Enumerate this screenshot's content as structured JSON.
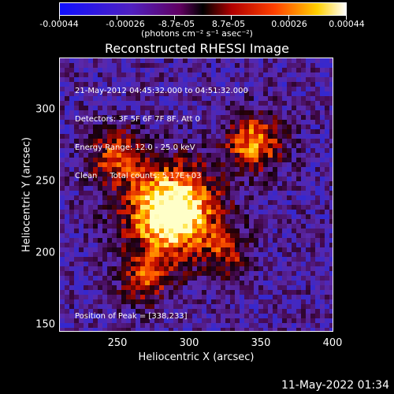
{
  "colorbar": {
    "labels": [
      "-0.00044",
      "-0.00026",
      "-8.7e-05",
      "8.7e-05",
      "0.00026",
      "0.00044"
    ],
    "units": "(photons cm⁻² s⁻¹ asec⁻²)",
    "colors": [
      "#0000ff",
      "#6000b0",
      "#800060",
      "#c00000",
      "#ff6000",
      "#ffff00",
      "#ffffff"
    ]
  },
  "title": "Reconstructed RHESSI Image",
  "info": {
    "line1": "21-May-2012 04:45:32.000 to 04:51:32.000",
    "line2": "Detectors: 3F 5F 6F 7F 8F, Att 0",
    "line3": "Energy Range: 12.0 - 25.0 keV",
    "line4": "Clean     Total counts: 5.17E+03"
  },
  "peak": "Position of Peak = [338,233]",
  "axes": {
    "xlabel": "Heliocentric X (arcsec)",
    "ylabel": "Heliocentric Y (arcsec)",
    "xticks": [
      "250",
      "300",
      "350",
      "400"
    ],
    "yticks": [
      "300",
      "250",
      "200",
      "150"
    ]
  },
  "timestamp": "11-May-2022 01:34"
}
